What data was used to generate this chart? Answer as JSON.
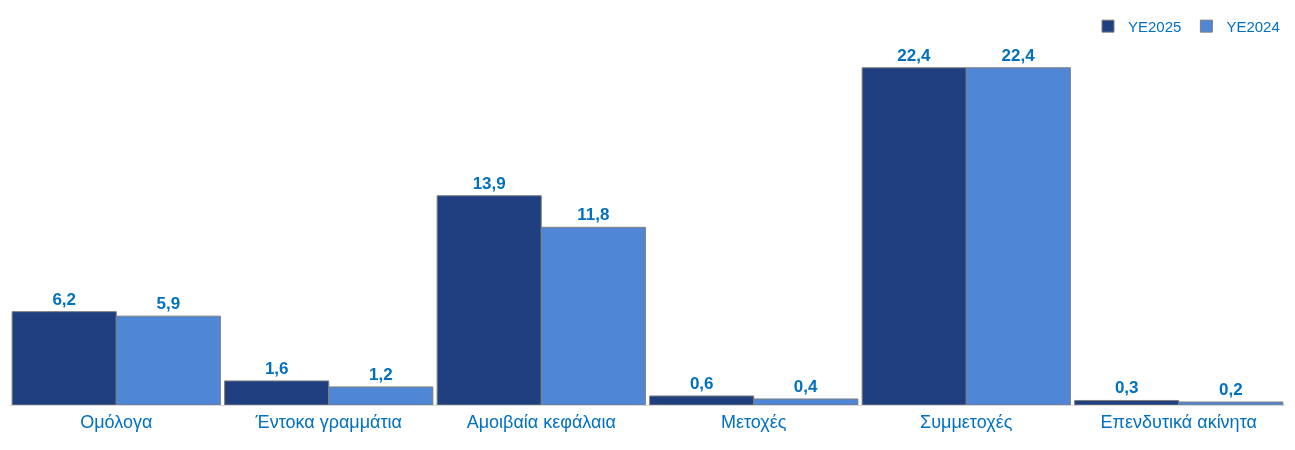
{
  "chart_data": {
    "type": "bar",
    "categories": [
      "Ομόλογα",
      "Έντοκα γραμμάτια",
      "Αμοιβαία κεφάλαια",
      "Μετοχές",
      "Συμμετοχές",
      "Επενδυτικά ακίνητα"
    ],
    "series": [
      {
        "name": "YE2025",
        "color": "#1f3f80",
        "values": [
          6.2,
          1.6,
          13.9,
          0.6,
          22.4,
          0.3
        ],
        "value_labels": [
          "6,2",
          "1,6",
          "13,9",
          "0,6",
          "22,4",
          "0,3"
        ]
      },
      {
        "name": "YE2024",
        "color": "#4f86d6",
        "values": [
          5.9,
          1.2,
          11.8,
          0.4,
          22.4,
          0.2
        ],
        "value_labels": [
          "5,9",
          "1,2",
          "11,8",
          "0,4",
          "22,4",
          "0,2"
        ]
      }
    ],
    "tick_labels": "x",
    "legend": "top right"
  }
}
